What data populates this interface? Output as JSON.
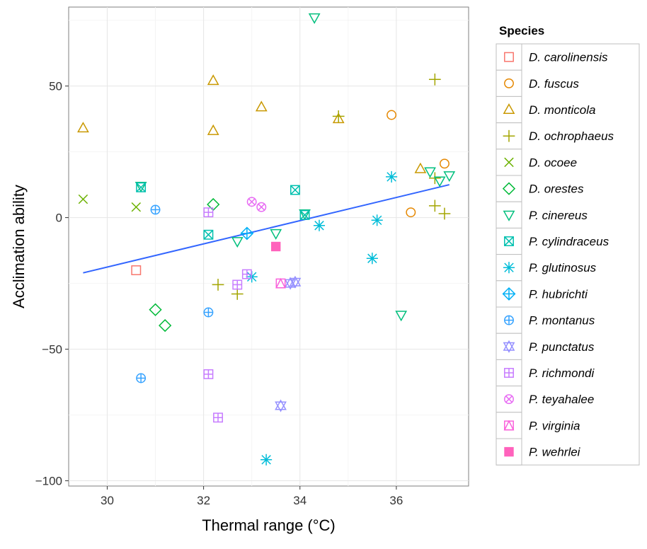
{
  "chart_data": {
    "type": "scatter",
    "xlabel": "Thermal range (°C)",
    "ylabel": "Acclimation ability",
    "xlim": [
      29.2,
      37.5
    ],
    "ylim": [
      -102,
      80
    ],
    "x_ticks": [
      30,
      32,
      34,
      36
    ],
    "y_ticks": [
      -100,
      -50,
      0,
      50
    ],
    "x_tick_labels": [
      "30",
      "32",
      "34",
      "36"
    ],
    "y_tick_labels": [
      "−100",
      "−50",
      "0",
      "50"
    ],
    "grid": true,
    "legend_title": "Species",
    "legend_position": "right",
    "series": [
      {
        "name": "D. carolinensis",
        "color": "#F8766D",
        "shape": "square",
        "points": [
          [
            30.6,
            -20
          ]
        ]
      },
      {
        "name": "D. fuscus",
        "color": "#E58700",
        "shape": "circle",
        "points": [
          [
            35.9,
            39
          ],
          [
            36.3,
            2
          ],
          [
            37.0,
            20.5
          ]
        ]
      },
      {
        "name": "D. monticola",
        "color": "#C99800",
        "shape": "triangle-up",
        "points": [
          [
            29.5,
            34
          ],
          [
            32.2,
            52
          ],
          [
            32.2,
            33
          ],
          [
            33.2,
            42
          ],
          [
            34.8,
            37.5
          ],
          [
            36.5,
            18.5
          ]
        ]
      },
      {
        "name": "D. ochrophaeus",
        "color": "#A3A500",
        "shape": "plus",
        "points": [
          [
            36.8,
            52.5
          ],
          [
            34.8,
            38.5
          ],
          [
            36.8,
            15
          ],
          [
            36.8,
            4.5
          ],
          [
            37.0,
            1.5
          ],
          [
            32.3,
            -25.5
          ],
          [
            32.7,
            -29
          ]
        ]
      },
      {
        "name": "D. ocoee",
        "color": "#6BB100",
        "shape": "cross",
        "points": [
          [
            29.5,
            7
          ],
          [
            30.6,
            4
          ]
        ]
      },
      {
        "name": "D. orestes",
        "color": "#00BA38",
        "shape": "diamond",
        "points": [
          [
            32.2,
            5
          ],
          [
            31.0,
            -35
          ],
          [
            31.2,
            -41
          ]
        ]
      },
      {
        "name": "P. cinereus",
        "color": "#00BF7D",
        "shape": "triangle-down",
        "points": [
          [
            34.3,
            76
          ],
          [
            30.7,
            12
          ],
          [
            36.7,
            17.5
          ],
          [
            36.9,
            14
          ],
          [
            37.1,
            16
          ],
          [
            34.1,
            1.5
          ],
          [
            33.5,
            -6
          ],
          [
            32.7,
            -9
          ],
          [
            36.1,
            -37
          ]
        ]
      },
      {
        "name": "P. cylindraceus",
        "color": "#00C0AF",
        "shape": "square-x",
        "points": [
          [
            30.7,
            11.5
          ],
          [
            33.9,
            10.5
          ],
          [
            34.1,
            1
          ],
          [
            32.1,
            -6.5
          ]
        ]
      },
      {
        "name": "P. glutinosus",
        "color": "#00BCD8",
        "shape": "asterisk",
        "points": [
          [
            35.9,
            15.5
          ],
          [
            35.6,
            -1
          ],
          [
            34.4,
            -3
          ],
          [
            33.0,
            -22.5
          ],
          [
            35.5,
            -15.5
          ],
          [
            33.3,
            -92
          ]
        ]
      },
      {
        "name": "P. hubrichti",
        "color": "#00B0F6",
        "shape": "circle-plus-diamond",
        "points": [
          [
            32.9,
            -6
          ]
        ]
      },
      {
        "name": "P. montanus",
        "color": "#35A2FF",
        "shape": "circle-plus",
        "points": [
          [
            31.0,
            3
          ],
          [
            32.1,
            -36
          ],
          [
            30.7,
            -61
          ]
        ]
      },
      {
        "name": "P. punctatus",
        "color": "#9590FF",
        "shape": "star-of-david",
        "points": [
          [
            33.9,
            -24.5
          ],
          [
            33.8,
            -25
          ],
          [
            33.6,
            -71.5
          ]
        ]
      },
      {
        "name": "P. richmondi",
        "color": "#C77CFF",
        "shape": "square-plus",
        "points": [
          [
            32.1,
            2
          ],
          [
            32.9,
            -21.5
          ],
          [
            32.7,
            -25.5
          ],
          [
            32.1,
            -59.5
          ],
          [
            32.3,
            -76
          ]
        ]
      },
      {
        "name": "P. teyahalee",
        "color": "#E76BF3",
        "shape": "circle-x",
        "points": [
          [
            33.0,
            6
          ],
          [
            33.2,
            4
          ]
        ]
      },
      {
        "name": "P. virginia",
        "color": "#FA62DB",
        "shape": "square-triangle",
        "points": [
          [
            33.6,
            -25
          ]
        ]
      },
      {
        "name": "P. wehrlei",
        "color": "#FF62BC",
        "shape": "filled-square",
        "points": [
          [
            33.5,
            -11
          ]
        ]
      }
    ],
    "trend_line": {
      "color": "#3366FF",
      "points": [
        [
          29.5,
          -21
        ],
        [
          37.1,
          12.5
        ]
      ]
    }
  }
}
